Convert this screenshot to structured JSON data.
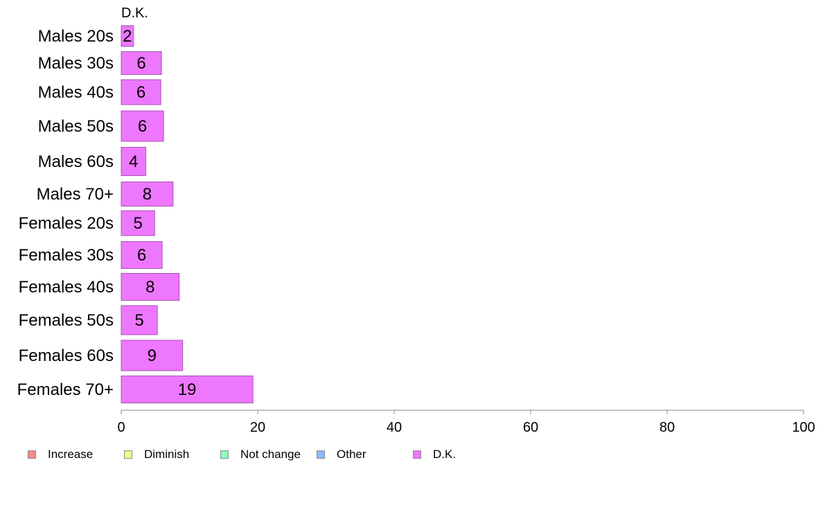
{
  "chart_data": {
    "type": "bar",
    "orientation": "horizontal",
    "title": "D.K.",
    "categories": [
      "Males 20s",
      "Males 30s",
      "Males 40s",
      "Males 50s",
      "Males 60s",
      "Males 70+",
      "Females 20s",
      "Females 30s",
      "Females 40s",
      "Females 50s",
      "Females 60s",
      "Females 70+"
    ],
    "series": [
      {
        "name": "D.K.",
        "color": "#ee77ff",
        "values": [
          1.8,
          5.9,
          5.8,
          6.2,
          3.6,
          7.6,
          4.9,
          6.0,
          8.5,
          5.3,
          9.0,
          19.3
        ],
        "labels": [
          "2",
          "6",
          "6",
          "6",
          "4",
          "8",
          "5",
          "6",
          "8",
          "5",
          "9",
          "19"
        ]
      }
    ],
    "xlim": [
      0,
      100
    ],
    "xticks": [
      "0",
      "20",
      "40",
      "60",
      "80",
      "100"
    ],
    "grid": false,
    "legend": {
      "position": "bottom",
      "entries": [
        {
          "label": "Increase",
          "color": "#f28b8b"
        },
        {
          "label": "Diminish",
          "color": "#eeff88"
        },
        {
          "label": "Not change",
          "color": "#88ffbb"
        },
        {
          "label": "Other",
          "color": "#88bbff"
        },
        {
          "label": "D.K.",
          "color": "#ee77ff"
        }
      ]
    }
  }
}
